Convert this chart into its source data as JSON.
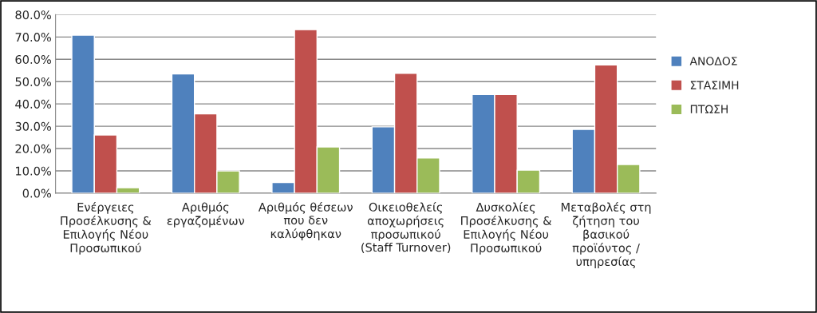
{
  "chart_data": {
    "type": "bar",
    "categories": [
      "Ενέργειες\nΠροσέλκυσης &\nΕπιλογής Νέου\nΠροσωπικού",
      "Αριθμός\nεργαζομένων",
      "Αριθμός θέσεων\nπου δεν\nκαλύφθηκαν",
      "Οικειοθελείς\nαποχωρήσεις\nπροσωπικού\n(Staff Turnover)",
      "Δυσκολίες\nΠροσέλκυσης &\nΕπιλογής Νέου\nΠροσωπικού",
      "Μεταβολές στη\nζήτηση του\nβασικού\nπροϊόντος /\nυπηρεσίας"
    ],
    "series": [
      {
        "name": "ΑΝΟΔΟΣ",
        "color": "#4f81bd",
        "values": [
          70.8,
          53.5,
          4.8,
          29.7,
          44.2,
          28.6
        ]
      },
      {
        "name": "ΣΤΑΣΙΜΗ",
        "color": "#c0504d",
        "values": [
          26.1,
          35.6,
          73.3,
          53.7,
          44.2,
          57.5
        ]
      },
      {
        "name": "ΠΤΩΣΗ",
        "color": "#9bbb59",
        "values": [
          2.4,
          10.0,
          20.7,
          15.8,
          10.3,
          12.8
        ]
      }
    ],
    "ylim": [
      0,
      80
    ],
    "yticks": [
      {
        "value": 0,
        "label": "0.0%"
      },
      {
        "value": 10,
        "label": "10.0%"
      },
      {
        "value": 20,
        "label": "20.0%"
      },
      {
        "value": 30,
        "label": "30.0%"
      },
      {
        "value": 40,
        "label": "40.0%"
      },
      {
        "value": 50,
        "label": "50.0%"
      },
      {
        "value": 60,
        "label": "60.0%"
      },
      {
        "value": 70,
        "label": "70.0%"
      },
      {
        "value": 80,
        "label": "80.0%"
      }
    ],
    "grid": "y",
    "legend": "right"
  }
}
